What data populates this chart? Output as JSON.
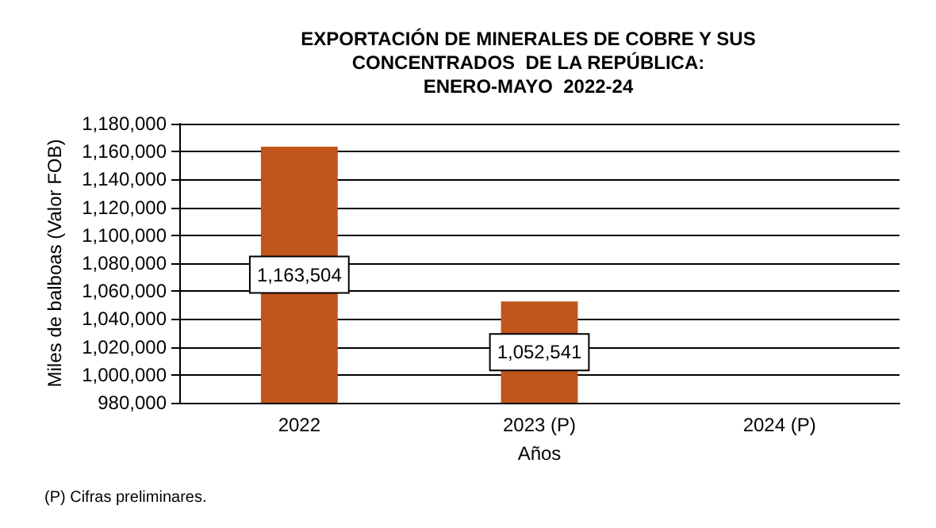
{
  "chart_data": {
    "type": "bar",
    "title": "EXPORTACIÓN DE MINERALES DE COBRE Y SUS\nCONCENTRADOS  DE LA REPÚBLICA:\nENERO-MAYO  2022-24",
    "xlabel": "Años",
    "ylabel": "Miles de balboas (Valor FOB)",
    "categories": [
      "2022",
      "2023 (P)",
      "2024 (P)"
    ],
    "values": [
      1163504,
      1052541,
      null
    ],
    "value_labels": [
      "1,163,504",
      "1,052,541",
      null
    ],
    "color": "#c0561a",
    "ylim": [
      980000,
      1180000
    ],
    "yticks": [
      {
        "value": 980000,
        "label": "980,000"
      },
      {
        "value": 1000000,
        "label": "1,000,000"
      },
      {
        "value": 1020000,
        "label": "1,020,000"
      },
      {
        "value": 1040000,
        "label": "1,040,000"
      },
      {
        "value": 1060000,
        "label": "1,060,000"
      },
      {
        "value": 1080000,
        "label": "1,080,000"
      },
      {
        "value": 1100000,
        "label": "1,100,000"
      },
      {
        "value": 1120000,
        "label": "1,120,000"
      },
      {
        "value": 1140000,
        "label": "1,140,000"
      },
      {
        "value": 1160000,
        "label": "1,160,000"
      },
      {
        "value": 1180000,
        "label": "1,180,000"
      }
    ],
    "grid": "y",
    "annotations": [
      "(P) Cifras preliminares."
    ]
  }
}
